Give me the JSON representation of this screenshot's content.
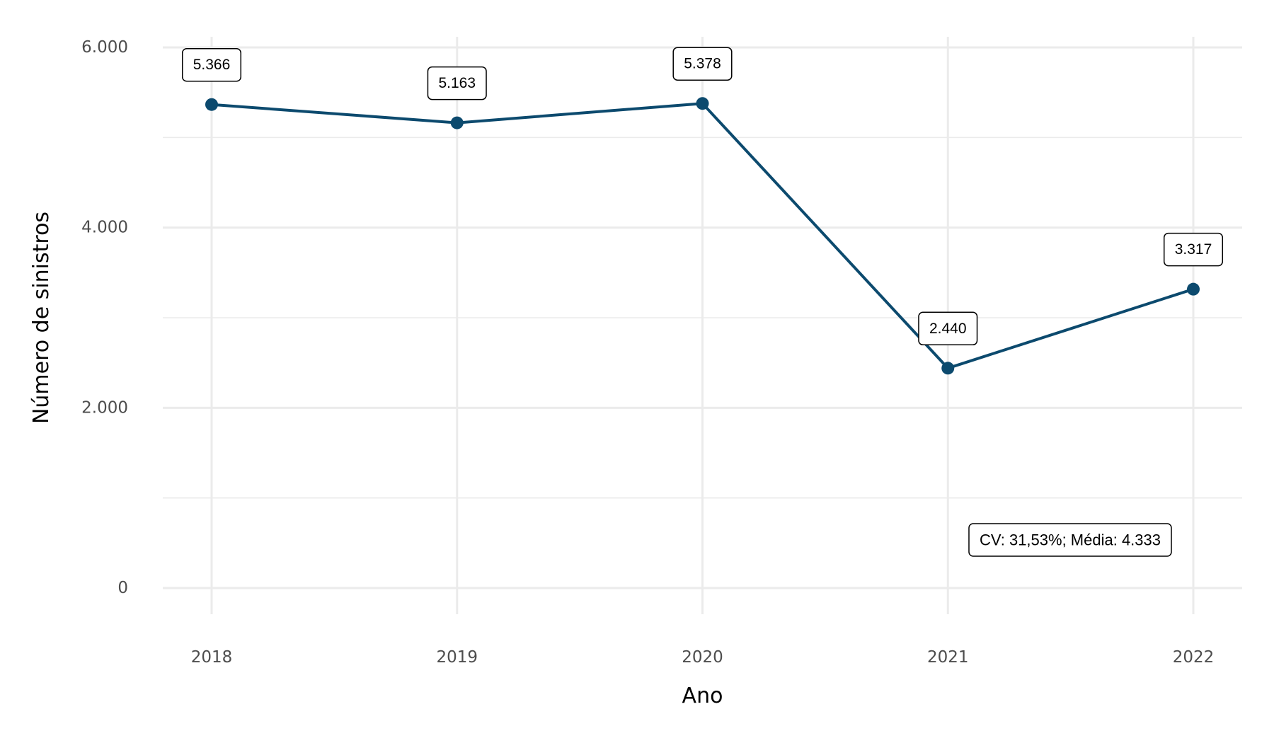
{
  "chart_data": {
    "type": "line",
    "title": "",
    "xlabel": "Ano",
    "ylabel": "Número de sinistros",
    "categories": [
      "2018",
      "2019",
      "2020",
      "2021",
      "2022"
    ],
    "series": [
      {
        "values": [
          5366,
          5163,
          5378,
          2440,
          3317
        ],
        "labels": [
          "5.366",
          "5.163",
          "5.378",
          "2.440",
          "3.317"
        ]
      }
    ],
    "ylim": [
      0,
      6000
    ],
    "yticks": [
      0,
      2000,
      4000,
      6000
    ],
    "ytick_labels": [
      "0",
      "2.000",
      "4.000",
      "6.000"
    ],
    "grid": true,
    "legend": "none",
    "annotation": "CV: 31,53%; Média: 4.333",
    "colors": {
      "line": "#0c4a6e",
      "grid": "#ebebeb"
    }
  }
}
